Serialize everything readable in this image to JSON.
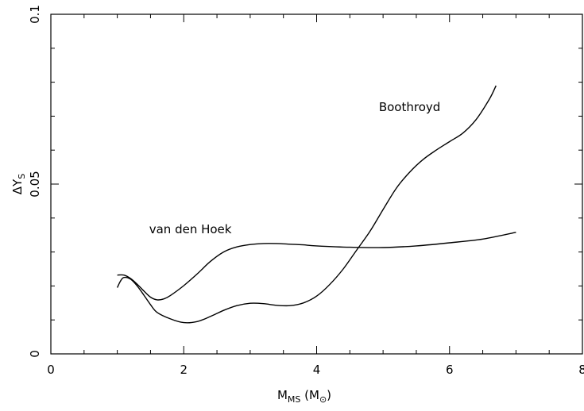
{
  "chart_data": {
    "type": "line",
    "title": "",
    "xlabel": {
      "main": "M",
      "sub": "MS",
      "unit_open": " (M",
      "unit_close": ")"
    },
    "ylabel": {
      "main": "ΔY",
      "sub": "S"
    },
    "xlim": [
      0,
      8
    ],
    "ylim": [
      0,
      0.1
    ],
    "x_ticks": [
      0,
      2,
      4,
      6,
      8
    ],
    "x_tick_labels": [
      "0",
      "2",
      "4",
      "6",
      "8"
    ],
    "y_ticks": [
      0,
      0.05,
      0.1
    ],
    "y_tick_labels": [
      "0",
      "0.05",
      "0.1"
    ],
    "grid": false,
    "legend": "none",
    "series": [
      {
        "label": "van den Hoek",
        "label_pos": {
          "x": 2.1,
          "y": 0.0355
        },
        "x": [
          1.0,
          1.1,
          1.2,
          1.3,
          1.4,
          1.5,
          1.6,
          1.7,
          1.8,
          2.0,
          2.2,
          2.4,
          2.6,
          2.8,
          3.0,
          3.2,
          3.4,
          3.6,
          3.8,
          4.0,
          4.5,
          5.0,
          5.5,
          6.0,
          6.5,
          7.0
        ],
        "y": [
          0.0232,
          0.0232,
          0.0222,
          0.0205,
          0.0185,
          0.0167,
          0.0159,
          0.0162,
          0.0172,
          0.0201,
          0.0235,
          0.0272,
          0.03,
          0.0315,
          0.0322,
          0.0325,
          0.0325,
          0.0323,
          0.0321,
          0.0318,
          0.0314,
          0.0313,
          0.0318,
          0.0327,
          0.0338,
          0.0358
        ]
      },
      {
        "label": "Boothroyd",
        "label_pos": {
          "x": 5.4,
          "y": 0.0715
        },
        "x": [
          1.0,
          1.05,
          1.1,
          1.2,
          1.3,
          1.4,
          1.5,
          1.6,
          1.8,
          2.0,
          2.2,
          2.4,
          2.6,
          2.8,
          3.0,
          3.2,
          3.4,
          3.6,
          3.8,
          4.0,
          4.2,
          4.4,
          4.6,
          4.8,
          5.0,
          5.2,
          5.4,
          5.6,
          5.8,
          6.0,
          6.2,
          6.4,
          6.6,
          6.7
        ],
        "y": [
          0.0195,
          0.0215,
          0.0225,
          0.022,
          0.02,
          0.0173,
          0.0145,
          0.0122,
          0.0103,
          0.0092,
          0.0095,
          0.011,
          0.0128,
          0.0142,
          0.0149,
          0.0148,
          0.0143,
          0.0142,
          0.015,
          0.017,
          0.0205,
          0.025,
          0.0305,
          0.036,
          0.0425,
          0.0488,
          0.0535,
          0.0572,
          0.06,
          0.0625,
          0.065,
          0.069,
          0.075,
          0.079
        ]
      }
    ]
  }
}
